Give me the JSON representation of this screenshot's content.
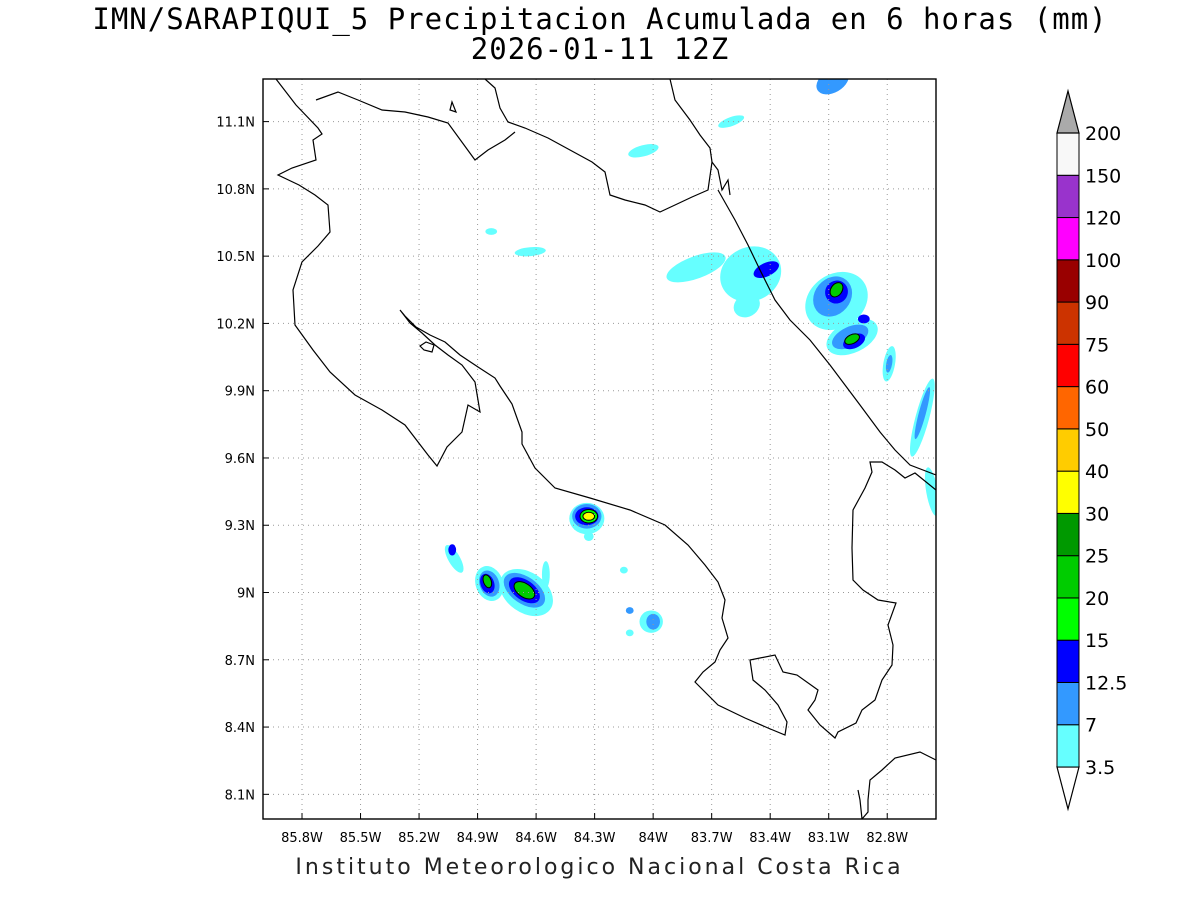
{
  "title": {
    "line1": "IMN/SARAPIQUI_5 Precipitacion Acumulada en 6 horas (mm)",
    "line2": "2026-01-11 12Z"
  },
  "footer": "Instituto Meteorologico Nacional Costa Rica",
  "map": {
    "lon_ticks": [
      {
        "value": -85.8,
        "label": "85.8W"
      },
      {
        "value": -85.5,
        "label": "85.5W"
      },
      {
        "value": -85.2,
        "label": "85.2W"
      },
      {
        "value": -84.9,
        "label": "84.9W"
      },
      {
        "value": -84.6,
        "label": "84.6W"
      },
      {
        "value": -84.3,
        "label": "84.3W"
      },
      {
        "value": -84.0,
        "label": "84W"
      },
      {
        "value": -83.7,
        "label": "83.7W"
      },
      {
        "value": -83.4,
        "label": "83.4W"
      },
      {
        "value": -83.1,
        "label": "83.1W"
      },
      {
        "value": -82.8,
        "label": "82.8W"
      }
    ],
    "lat_ticks": [
      {
        "value": 11.1,
        "label": "11.1N"
      },
      {
        "value": 10.8,
        "label": "10.8N"
      },
      {
        "value": 10.5,
        "label": "10.5N"
      },
      {
        "value": 10.2,
        "label": "10.2N"
      },
      {
        "value": 9.9,
        "label": "9.9N"
      },
      {
        "value": 9.6,
        "label": "9.6N"
      },
      {
        "value": 9.3,
        "label": "9.3N"
      },
      {
        "value": 9.0,
        "label": "9N"
      },
      {
        "value": 8.7,
        "label": "8.7N"
      },
      {
        "value": 8.4,
        "label": "8.4N"
      },
      {
        "value": 8.1,
        "label": "8.1N"
      }
    ],
    "lon_range": [
      -86.0,
      -82.55
    ],
    "lat_range": [
      7.99,
      11.29
    ],
    "grid": true
  },
  "colorbar": {
    "levels": [
      {
        "label": "3.5",
        "color": "#66ffff"
      },
      {
        "label": "7",
        "color": "#3399ff"
      },
      {
        "label": "12.5",
        "color": "#0000ff"
      },
      {
        "label": "15",
        "color": "#00ff00"
      },
      {
        "label": "20",
        "color": "#00cc00"
      },
      {
        "label": "25",
        "color": "#009900"
      },
      {
        "label": "30",
        "color": "#ffff00"
      },
      {
        "label": "40",
        "color": "#ffcc00"
      },
      {
        "label": "50",
        "color": "#ff6600"
      },
      {
        "label": "60",
        "color": "#ff0000"
      },
      {
        "label": "75",
        "color": "#cc3300"
      },
      {
        "label": "90",
        "color": "#990000"
      },
      {
        "label": "100",
        "color": "#ff00ff"
      },
      {
        "label": "120",
        "color": "#9933cc"
      },
      {
        "label": "150",
        "color": "#f8f8f8"
      },
      {
        "label": "200",
        "color": "#aaaaaa"
      }
    ]
  },
  "precip_cells": [
    {
      "lon": -83.08,
      "lat": 11.28,
      "rx": 0.09,
      "ry": 0.05,
      "rot": -30,
      "level": 1
    },
    {
      "lon": -83.6,
      "lat": 11.1,
      "rx": 0.07,
      "ry": 0.02,
      "rot": -20,
      "level": 0
    },
    {
      "lon": -84.05,
      "lat": 10.97,
      "rx": 0.08,
      "ry": 0.025,
      "rot": -15,
      "level": 0
    },
    {
      "lon": -84.83,
      "lat": 10.61,
      "rx": 0.03,
      "ry": 0.015,
      "rot": 0,
      "level": 0
    },
    {
      "lon": -84.63,
      "lat": 10.52,
      "rx": 0.08,
      "ry": 0.02,
      "rot": -5,
      "level": 0
    },
    {
      "lon": -83.78,
      "lat": 10.45,
      "rx": 0.16,
      "ry": 0.05,
      "rot": -20,
      "level": 0
    },
    {
      "lon": -83.5,
      "lat": 10.42,
      "rx": 0.16,
      "ry": 0.12,
      "rot": -25,
      "level": 0
    },
    {
      "lon": -83.42,
      "lat": 10.44,
      "rx": 0.07,
      "ry": 0.03,
      "rot": -25,
      "level": 2
    },
    {
      "lon": -83.52,
      "lat": 10.28,
      "rx": 0.07,
      "ry": 0.05,
      "rot": -30,
      "level": 0
    },
    {
      "lon": -83.06,
      "lat": 10.3,
      "rx": 0.17,
      "ry": 0.12,
      "rot": -35,
      "level": 0
    },
    {
      "lon": -83.08,
      "lat": 10.32,
      "rx": 0.11,
      "ry": 0.08,
      "rot": -50,
      "level": 1
    },
    {
      "lon": -83.06,
      "lat": 10.34,
      "rx": 0.06,
      "ry": 0.05,
      "rot": -50,
      "level": 2
    },
    {
      "lon": -83.06,
      "lat": 10.35,
      "rx": 0.04,
      "ry": 0.025,
      "rot": -55,
      "level": 4
    },
    {
      "lon": -82.98,
      "lat": 10.14,
      "rx": 0.14,
      "ry": 0.07,
      "rot": -25,
      "level": 0
    },
    {
      "lon": -82.99,
      "lat": 10.14,
      "rx": 0.1,
      "ry": 0.045,
      "rot": -25,
      "level": 1
    },
    {
      "lon": -82.97,
      "lat": 10.12,
      "rx": 0.06,
      "ry": 0.03,
      "rot": -25,
      "level": 2
    },
    {
      "lon": -82.98,
      "lat": 10.13,
      "rx": 0.04,
      "ry": 0.02,
      "rot": -25,
      "level": 4
    },
    {
      "lon": -82.92,
      "lat": 10.22,
      "rx": 0.03,
      "ry": 0.02,
      "rot": 0,
      "level": 2
    },
    {
      "lon": -82.79,
      "lat": 10.02,
      "rx": 0.03,
      "ry": 0.08,
      "rot": 10,
      "level": 0
    },
    {
      "lon": -82.79,
      "lat": 10.02,
      "rx": 0.015,
      "ry": 0.04,
      "rot": 10,
      "level": 1
    },
    {
      "lon": -82.62,
      "lat": 9.78,
      "rx": 0.035,
      "ry": 0.18,
      "rot": 15,
      "level": 0
    },
    {
      "lon": -82.62,
      "lat": 9.8,
      "rx": 0.018,
      "ry": 0.12,
      "rot": 15,
      "level": 1
    },
    {
      "lon": -82.57,
      "lat": 9.45,
      "rx": 0.03,
      "ry": 0.11,
      "rot": -10,
      "level": 0
    },
    {
      "lon": -84.34,
      "lat": 9.33,
      "rx": 0.09,
      "ry": 0.07,
      "rot": 0,
      "level": 0
    },
    {
      "lon": -84.34,
      "lat": 9.34,
      "rx": 0.075,
      "ry": 0.055,
      "rot": 0,
      "level": 1
    },
    {
      "lon": -84.34,
      "lat": 9.34,
      "rx": 0.06,
      "ry": 0.04,
      "rot": 0,
      "level": 2
    },
    {
      "lon": -84.33,
      "lat": 9.34,
      "rx": 0.045,
      "ry": 0.03,
      "rot": 0,
      "level": 3
    },
    {
      "lon": -84.33,
      "lat": 9.34,
      "rx": 0.03,
      "ry": 0.018,
      "rot": 0,
      "level": 6
    },
    {
      "lon": -84.33,
      "lat": 9.25,
      "rx": 0.025,
      "ry": 0.02,
      "rot": 0,
      "level": 0
    },
    {
      "lon": -84.15,
      "lat": 9.1,
      "rx": 0.02,
      "ry": 0.015,
      "rot": 0,
      "level": 0
    },
    {
      "lon": -85.02,
      "lat": 9.15,
      "rx": 0.03,
      "ry": 0.07,
      "rot": -30,
      "level": 0
    },
    {
      "lon": -85.03,
      "lat": 9.19,
      "rx": 0.02,
      "ry": 0.025,
      "rot": 0,
      "level": 2
    },
    {
      "lon": -84.84,
      "lat": 9.04,
      "rx": 0.07,
      "ry": 0.08,
      "rot": -20,
      "level": 0
    },
    {
      "lon": -84.84,
      "lat": 9.04,
      "rx": 0.05,
      "ry": 0.06,
      "rot": -20,
      "level": 1
    },
    {
      "lon": -84.85,
      "lat": 9.04,
      "rx": 0.035,
      "ry": 0.045,
      "rot": -20,
      "level": 2
    },
    {
      "lon": -84.85,
      "lat": 9.05,
      "rx": 0.02,
      "ry": 0.03,
      "rot": -20,
      "level": 4
    },
    {
      "lon": -84.65,
      "lat": 9.0,
      "rx": 0.15,
      "ry": 0.09,
      "rot": 35,
      "level": 0
    },
    {
      "lon": -84.66,
      "lat": 9.01,
      "rx": 0.12,
      "ry": 0.06,
      "rot": 35,
      "level": 1
    },
    {
      "lon": -84.66,
      "lat": 9.01,
      "rx": 0.09,
      "ry": 0.045,
      "rot": 35,
      "level": 2
    },
    {
      "lon": -84.66,
      "lat": 9.01,
      "rx": 0.06,
      "ry": 0.03,
      "rot": 35,
      "level": 4
    },
    {
      "lon": -84.55,
      "lat": 9.08,
      "rx": 0.02,
      "ry": 0.06,
      "rot": 0,
      "level": 0
    },
    {
      "lon": -84.01,
      "lat": 8.87,
      "rx": 0.06,
      "ry": 0.05,
      "rot": 0,
      "level": 0
    },
    {
      "lon": -84.0,
      "lat": 8.87,
      "rx": 0.035,
      "ry": 0.035,
      "rot": 0,
      "level": 1
    },
    {
      "lon": -84.12,
      "lat": 8.92,
      "rx": 0.02,
      "ry": 0.015,
      "rot": 0,
      "level": 1
    },
    {
      "lon": -84.12,
      "lat": 8.82,
      "rx": 0.02,
      "ry": 0.015,
      "rot": 0,
      "level": 0
    }
  ]
}
